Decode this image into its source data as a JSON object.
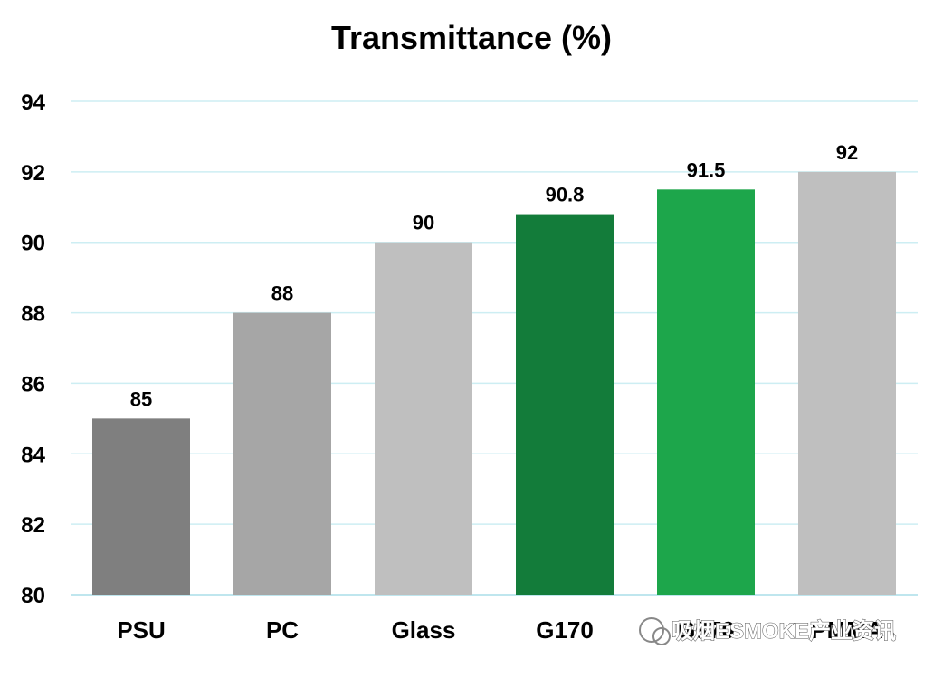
{
  "chart_data": {
    "type": "bar",
    "title": "Transmittance (%)",
    "categories": [
      "PSU",
      "PC",
      "Glass",
      "G170",
      "G370",
      "PMMA"
    ],
    "values": [
      85,
      88,
      90,
      90.8,
      91.5,
      92
    ],
    "data_labels": [
      "85",
      "88",
      "90",
      "90.8",
      "91.5",
      "92"
    ],
    "bar_colors": [
      "#7f7f7f",
      "#a6a6a6",
      "#bfbfbf",
      "#137c3a",
      "#1da64b",
      "#bfbfbf"
    ],
    "ylim": [
      80,
      94
    ],
    "yticks": [
      80,
      82,
      84,
      86,
      88,
      90,
      92,
      94
    ],
    "grid": true,
    "grid_color": "#cdeef3",
    "legend": "none"
  },
  "watermark": {
    "text": "吸烟ESMOKE产业资讯"
  }
}
